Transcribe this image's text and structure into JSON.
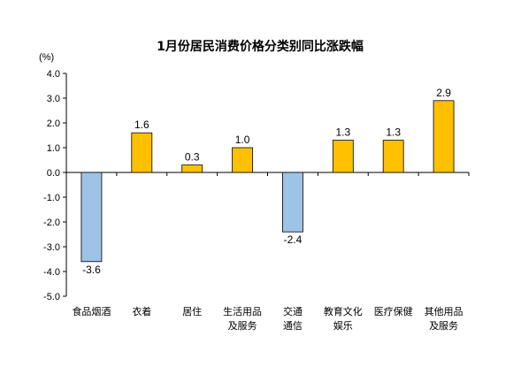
{
  "chart_data": {
    "type": "bar",
    "title": "1月份居民消费价格分类别同比涨跌幅",
    "unit_label": "(%)",
    "categories": [
      [
        "食品烟酒"
      ],
      [
        "衣着"
      ],
      [
        "居住"
      ],
      [
        "生活用品",
        "及服务"
      ],
      [
        "交通",
        "通信"
      ],
      [
        "教育文化",
        "娱乐"
      ],
      [
        "医疗保健"
      ],
      [
        "其他用品",
        "及服务"
      ]
    ],
    "values": [
      -3.6,
      1.6,
      0.3,
      1.0,
      -2.4,
      1.3,
      1.3,
      2.9
    ],
    "value_labels": [
      "-3.6",
      "1.6",
      "0.3",
      "1.0",
      "-2.4",
      "1.3",
      "1.3",
      "2.9"
    ],
    "ylim": [
      -5.0,
      4.0
    ],
    "yticks": [
      "4.0",
      "3.0",
      "2.0",
      "1.0",
      "0.0",
      "-1.0",
      "-2.0",
      "-3.0",
      "-4.0",
      "-5.0"
    ],
    "grid": false,
    "colors": {
      "positive": "#FFC000",
      "positive_stroke": "#000000",
      "negative": "#9DC3E6",
      "negative_stroke": "#000000",
      "axis": "#000000"
    }
  }
}
